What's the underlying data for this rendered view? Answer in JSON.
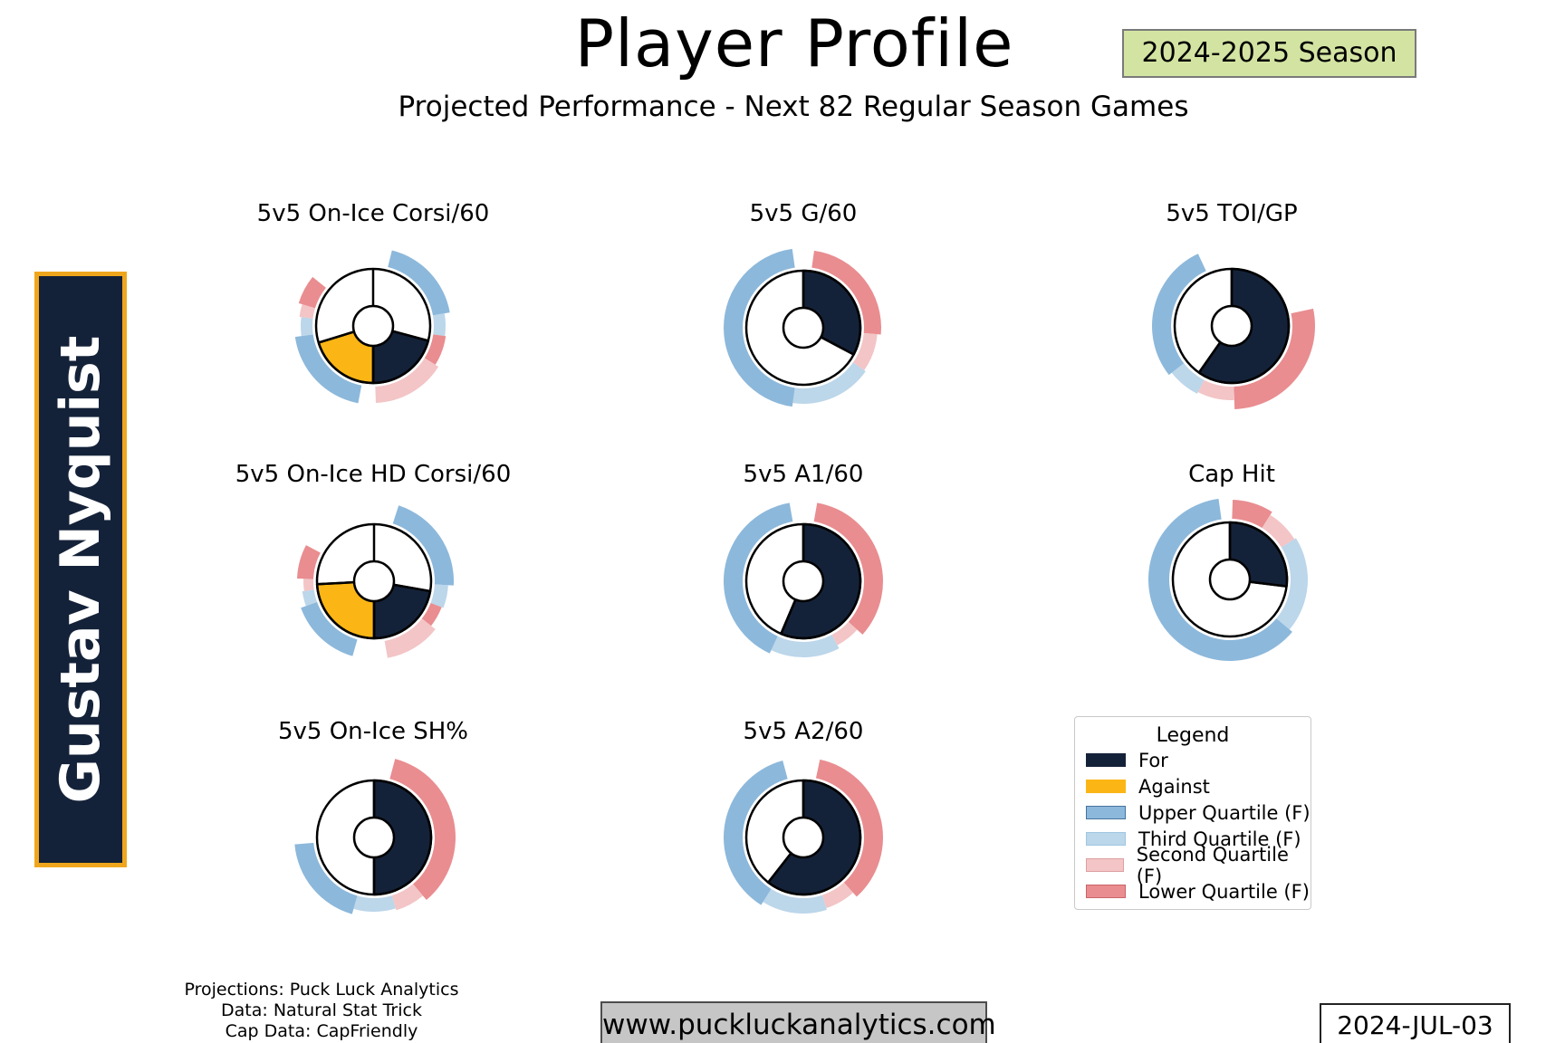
{
  "header": {
    "title": "Player Profile",
    "season_badge": "2024-2025 Season",
    "subtitle": "Projected Performance - Next 82 Regular Season Games"
  },
  "player": {
    "name": "Gustav Nyquist"
  },
  "colors": {
    "for": "#142239",
    "against": "#fbb615",
    "upper_quartile": "#8cb8db",
    "third_quartile": "#bcd6ea",
    "second_quartile": "#f3c5c6",
    "lower_quartile": "#e98d90",
    "badge_bg": "#d3e4a2",
    "banner_bg": "#142239",
    "banner_border": "#f0a61c"
  },
  "chart_data": [
    {
      "type": "pie",
      "title": "5v5 On-Ice Corsi/60",
      "wedges": [
        {
          "name": "for",
          "color_key": "for",
          "start_deg": 105,
          "end_deg": 180
        },
        {
          "name": "against",
          "color_key": "against",
          "start_deg": 180,
          "end_deg": 253
        }
      ],
      "dividers_deg": [
        0,
        105,
        180,
        253
      ],
      "quartile_arcs": [
        {
          "band": "upper_quartile",
          "start_deg": 14,
          "end_deg": 80,
          "outer_r": 86
        },
        {
          "band": "third_quartile",
          "start_deg": 80,
          "end_deg": 98,
          "outer_r": 80
        },
        {
          "band": "lower_quartile",
          "start_deg": 98,
          "end_deg": 122,
          "outer_r": 81
        },
        {
          "band": "second_quartile",
          "start_deg": 122,
          "end_deg": 178,
          "outer_r": 85
        },
        {
          "band": "upper_quartile",
          "start_deg": 191,
          "end_deg": 262,
          "outer_r": 87
        },
        {
          "band": "third_quartile",
          "start_deg": 262,
          "end_deg": 277,
          "outer_r": 80
        },
        {
          "band": "second_quartile",
          "start_deg": 277,
          "end_deg": 287,
          "outer_r": 82
        },
        {
          "band": "lower_quartile",
          "start_deg": 287,
          "end_deg": 309,
          "outer_r": 86
        }
      ]
    },
    {
      "type": "pie",
      "title": "5v5 G/60",
      "wedges": [
        {
          "name": "for",
          "color_key": "for",
          "start_deg": 0,
          "end_deg": 118
        }
      ],
      "dividers_deg": [
        0,
        118
      ],
      "quartile_arcs": [
        {
          "band": "lower_quartile",
          "start_deg": 8,
          "end_deg": 95,
          "outer_r": 86
        },
        {
          "band": "second_quartile",
          "start_deg": 95,
          "end_deg": 125,
          "outer_r": 82
        },
        {
          "band": "third_quartile",
          "start_deg": 125,
          "end_deg": 188,
          "outer_r": 84
        },
        {
          "band": "upper_quartile",
          "start_deg": 188,
          "end_deg": 352,
          "outer_r": 88
        }
      ]
    },
    {
      "type": "pie",
      "title": "5v5 TOI/GP",
      "wedges": [
        {
          "name": "for",
          "color_key": "for",
          "start_deg": 0,
          "end_deg": 215
        }
      ],
      "dividers_deg": [
        0,
        215
      ],
      "quartile_arcs": [
        {
          "band": "lower_quartile",
          "start_deg": 78,
          "end_deg": 178,
          "outer_r": 92
        },
        {
          "band": "second_quartile",
          "start_deg": 178,
          "end_deg": 207,
          "outer_r": 82
        },
        {
          "band": "third_quartile",
          "start_deg": 207,
          "end_deg": 232,
          "outer_r": 84
        },
        {
          "band": "upper_quartile",
          "start_deg": 232,
          "end_deg": 335,
          "outer_r": 88
        }
      ]
    },
    {
      "type": "pie",
      "title": "5v5 On-Ice HD Corsi/60",
      "wedges": [
        {
          "name": "for",
          "color_key": "for",
          "start_deg": 100,
          "end_deg": 180
        },
        {
          "name": "against",
          "color_key": "against",
          "start_deg": 180,
          "end_deg": 267
        }
      ],
      "dividers_deg": [
        0,
        100,
        180,
        267
      ],
      "quartile_arcs": [
        {
          "band": "upper_quartile",
          "start_deg": 18,
          "end_deg": 93,
          "outer_r": 88
        },
        {
          "band": "third_quartile",
          "start_deg": 93,
          "end_deg": 111,
          "outer_r": 82
        },
        {
          "band": "lower_quartile",
          "start_deg": 111,
          "end_deg": 128,
          "outer_r": 80
        },
        {
          "band": "second_quartile",
          "start_deg": 128,
          "end_deg": 170,
          "outer_r": 86
        },
        {
          "band": "upper_quartile",
          "start_deg": 196,
          "end_deg": 250,
          "outer_r": 86
        },
        {
          "band": "third_quartile",
          "start_deg": 250,
          "end_deg": 262,
          "outer_r": 80
        },
        {
          "band": "second_quartile",
          "start_deg": 262,
          "end_deg": 272,
          "outer_r": 78
        },
        {
          "band": "lower_quartile",
          "start_deg": 272,
          "end_deg": 298,
          "outer_r": 85
        }
      ]
    },
    {
      "type": "pie",
      "title": "5v5 A1/60",
      "wedges": [
        {
          "name": "for",
          "color_key": "for",
          "start_deg": 0,
          "end_deg": 203
        }
      ],
      "dividers_deg": [
        0,
        203
      ],
      "quartile_arcs": [
        {
          "band": "lower_quartile",
          "start_deg": 10,
          "end_deg": 132,
          "outer_r": 88
        },
        {
          "band": "second_quartile",
          "start_deg": 132,
          "end_deg": 152,
          "outer_r": 80
        },
        {
          "band": "third_quartile",
          "start_deg": 152,
          "end_deg": 205,
          "outer_r": 84
        },
        {
          "band": "upper_quartile",
          "start_deg": 205,
          "end_deg": 350,
          "outer_r": 88
        }
      ]
    },
    {
      "type": "pie",
      "title": "Cap Hit",
      "wedges": [
        {
          "name": "for",
          "color_key": "for",
          "start_deg": 0,
          "end_deg": 97
        }
      ],
      "dividers_deg": [
        0,
        97
      ],
      "quartile_arcs": [
        {
          "band": "lower_quartile",
          "start_deg": 2,
          "end_deg": 32,
          "outer_r": 88
        },
        {
          "band": "second_quartile",
          "start_deg": 32,
          "end_deg": 58,
          "outer_r": 84
        },
        {
          "band": "third_quartile",
          "start_deg": 58,
          "end_deg": 130,
          "outer_r": 86
        },
        {
          "band": "upper_quartile",
          "start_deg": 130,
          "end_deg": 352,
          "outer_r": 90
        }
      ]
    },
    {
      "type": "pie",
      "title": "5v5 On-Ice SH%",
      "wedges": [
        {
          "name": "for",
          "color_key": "for",
          "start_deg": 0,
          "end_deg": 180
        }
      ],
      "dividers_deg": [
        0,
        180
      ],
      "quartile_arcs": [
        {
          "band": "lower_quartile",
          "start_deg": 15,
          "end_deg": 140,
          "outer_r": 90
        },
        {
          "band": "second_quartile",
          "start_deg": 140,
          "end_deg": 163,
          "outer_r": 84
        },
        {
          "band": "third_quartile",
          "start_deg": 163,
          "end_deg": 196,
          "outer_r": 82
        },
        {
          "band": "upper_quartile",
          "start_deg": 196,
          "end_deg": 265,
          "outer_r": 88
        }
      ]
    },
    {
      "type": "pie",
      "title": "5v5 A2/60",
      "wedges": [
        {
          "name": "for",
          "color_key": "for",
          "start_deg": 0,
          "end_deg": 218
        }
      ],
      "dividers_deg": [
        0,
        218
      ],
      "quartile_arcs": [
        {
          "band": "lower_quartile",
          "start_deg": 12,
          "end_deg": 138,
          "outer_r": 88
        },
        {
          "band": "second_quartile",
          "start_deg": 138,
          "end_deg": 162,
          "outer_r": 82
        },
        {
          "band": "third_quartile",
          "start_deg": 162,
          "end_deg": 212,
          "outer_r": 84
        },
        {
          "band": "upper_quartile",
          "start_deg": 212,
          "end_deg": 345,
          "outer_r": 88
        }
      ]
    }
  ],
  "legend": {
    "title": "Legend",
    "items": [
      {
        "label": "For",
        "fill": "#142239",
        "border": "#142239"
      },
      {
        "label": "Against",
        "fill": "#fbb615",
        "border": "#fbb615"
      },
      {
        "label": "Upper Quartile (F)",
        "fill": "#8cb8db",
        "border": "#45749e"
      },
      {
        "label": "Third Quartile (F)",
        "fill": "#bcd6ea",
        "border": "#a0c6e0"
      },
      {
        "label": "Second Quartile (F)",
        "fill": "#f3c5c6",
        "border": "#de9fa1"
      },
      {
        "label": "Lower Quartile (F)",
        "fill": "#e98d90",
        "border": "#c96468"
      }
    ]
  },
  "footer": {
    "credits": [
      "Projections: Puck Luck Analytics",
      "Data: Natural Stat Trick",
      "Cap Data: CapFriendly"
    ],
    "website": "www.puckluckanalytics.com",
    "date": "2024-JUL-03"
  }
}
